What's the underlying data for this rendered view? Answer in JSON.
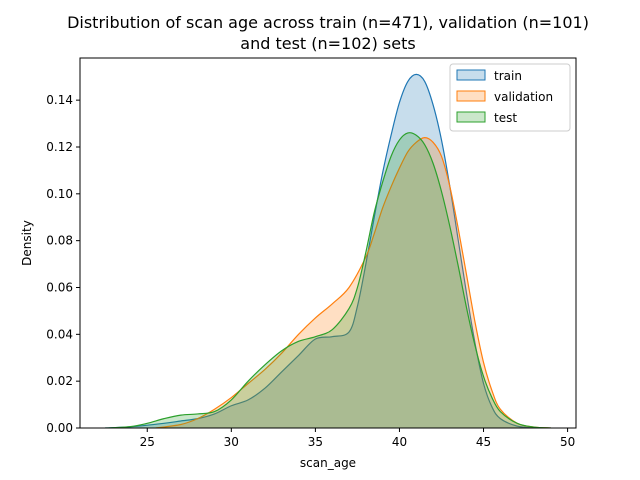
{
  "chart_data": {
    "type": "area",
    "title_line1": "Distribution of scan age across train (n=471), validation (n=101)",
    "title_line2": "and test (n=102) sets",
    "xlabel": "scan_age",
    "ylabel": "Density",
    "xlim": [
      21,
      50.5
    ],
    "ylim": [
      0,
      0.158
    ],
    "xticks": [
      25,
      30,
      35,
      40,
      45,
      50
    ],
    "yticks": [
      0.0,
      0.02,
      0.04,
      0.06,
      0.08,
      0.1,
      0.12,
      0.14
    ],
    "legend_position": "top-right",
    "series": [
      {
        "name": "train",
        "color": "#1f77b4",
        "x": [
          22.5,
          24,
          26,
          27,
          28,
          29,
          30,
          31,
          32,
          33,
          34,
          35,
          36,
          37,
          37.5,
          38,
          38.5,
          39,
          39.5,
          40,
          40.5,
          41,
          41.5,
          42,
          42.5,
          43,
          43.5,
          44,
          44.5,
          45,
          45.5,
          46,
          47,
          48,
          49
        ],
        "y": [
          0.0,
          0.0005,
          0.002,
          0.003,
          0.004,
          0.006,
          0.0095,
          0.012,
          0.017,
          0.024,
          0.031,
          0.038,
          0.039,
          0.041,
          0.052,
          0.07,
          0.09,
          0.109,
          0.125,
          0.139,
          0.148,
          0.151,
          0.148,
          0.138,
          0.123,
          0.103,
          0.08,
          0.057,
          0.036,
          0.019,
          0.009,
          0.004,
          0.0008,
          0.0001,
          0.0
        ]
      },
      {
        "name": "validation",
        "color": "#ff7f0e",
        "x": [
          25.5,
          27,
          28,
          29,
          30,
          31,
          32,
          33,
          34,
          35,
          36,
          37,
          38,
          38.5,
          39,
          39.5,
          40,
          40.5,
          41,
          41.5,
          42,
          42.5,
          43,
          43.5,
          44,
          44.5,
          45,
          45.5,
          46,
          47,
          48,
          49
        ],
        "y": [
          0.0,
          0.0015,
          0.004,
          0.008,
          0.013,
          0.019,
          0.025,
          0.032,
          0.04,
          0.047,
          0.053,
          0.06,
          0.073,
          0.083,
          0.094,
          0.103,
          0.111,
          0.118,
          0.122,
          0.124,
          0.122,
          0.116,
          0.103,
          0.085,
          0.065,
          0.045,
          0.028,
          0.016,
          0.008,
          0.002,
          0.0004,
          0.0
        ]
      },
      {
        "name": "test",
        "color": "#2ca02c",
        "x": [
          22.5,
          24,
          25,
          26,
          27,
          28,
          29,
          30,
          31,
          32,
          33,
          34,
          35,
          36,
          37,
          37.5,
          38,
          38.5,
          39,
          39.5,
          40,
          40.5,
          41,
          41.5,
          42,
          42.5,
          43,
          43.5,
          44,
          44.5,
          45,
          45.5,
          46,
          47,
          48,
          49
        ],
        "y": [
          0.0,
          0.0006,
          0.002,
          0.004,
          0.0055,
          0.006,
          0.007,
          0.012,
          0.02,
          0.027,
          0.033,
          0.037,
          0.039,
          0.042,
          0.051,
          0.06,
          0.075,
          0.092,
          0.105,
          0.116,
          0.123,
          0.126,
          0.125,
          0.121,
          0.113,
          0.101,
          0.086,
          0.069,
          0.051,
          0.035,
          0.022,
          0.013,
          0.007,
          0.002,
          0.0004,
          0.0
        ]
      }
    ]
  }
}
